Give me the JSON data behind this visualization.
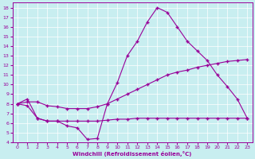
{
  "xlabel": "Windchill (Refroidissement éolien,°C)",
  "xlim": [
    -0.5,
    23.5
  ],
  "ylim": [
    4,
    18.5
  ],
  "xticks": [
    0,
    1,
    2,
    3,
    4,
    5,
    6,
    7,
    8,
    9,
    10,
    11,
    12,
    13,
    14,
    15,
    16,
    17,
    18,
    19,
    20,
    21,
    22,
    23
  ],
  "yticks": [
    4,
    5,
    6,
    7,
    8,
    9,
    10,
    11,
    12,
    13,
    14,
    15,
    16,
    17,
    18
  ],
  "bg_color": "#c8eef0",
  "grid_color": "#ffffff",
  "line_color": "#990099",
  "line1_x": [
    0,
    1,
    2,
    3,
    4,
    5,
    6,
    7,
    8,
    9,
    10,
    11,
    12,
    13,
    14,
    15,
    16,
    17,
    18,
    19,
    20,
    21,
    22,
    23
  ],
  "line1_y": [
    8.0,
    8.5,
    6.5,
    6.2,
    6.2,
    5.7,
    5.5,
    4.3,
    4.4,
    8.0,
    10.2,
    13.0,
    14.5,
    16.5,
    18.0,
    17.5,
    16.0,
    14.5,
    13.5,
    12.5,
    11.0,
    9.8,
    8.5,
    6.5
  ],
  "line2_x": [
    0,
    1,
    2,
    3,
    4,
    5,
    6,
    7,
    8,
    9,
    10,
    11,
    12,
    13,
    14,
    15,
    16,
    17,
    18,
    19,
    20,
    21,
    22,
    23
  ],
  "line2_y": [
    8.0,
    8.2,
    8.2,
    7.8,
    7.7,
    7.5,
    7.5,
    7.5,
    7.7,
    8.0,
    8.5,
    9.0,
    9.5,
    10.0,
    10.5,
    11.0,
    11.3,
    11.5,
    11.8,
    12.0,
    12.2,
    12.4,
    12.5,
    12.6
  ],
  "line3_x": [
    0,
    1,
    2,
    3,
    4,
    5,
    6,
    7,
    8,
    9,
    10,
    11,
    12,
    13,
    14,
    15,
    16,
    17,
    18,
    19,
    20,
    21,
    22,
    23
  ],
  "line3_y": [
    8.0,
    7.8,
    6.5,
    6.2,
    6.2,
    6.2,
    6.2,
    6.2,
    6.2,
    6.3,
    6.4,
    6.4,
    6.5,
    6.5,
    6.5,
    6.5,
    6.5,
    6.5,
    6.5,
    6.5,
    6.5,
    6.5,
    6.5,
    6.5
  ]
}
